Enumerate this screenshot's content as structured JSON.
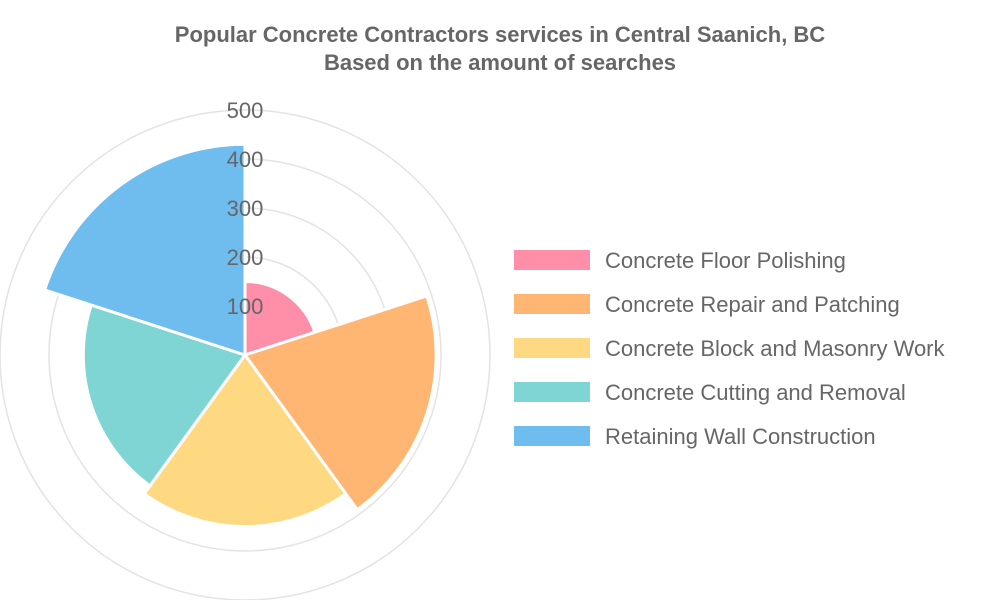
{
  "chart_data": {
    "type": "polarArea",
    "title": [
      "Popular Concrete Contractors services in Central Saanich, BC",
      "Based on the amount of searches"
    ],
    "categories": [
      "Concrete Floor Polishing",
      "Concrete Repair and Patching",
      "Concrete Block and Masonry Work",
      "Concrete Cutting and Removal",
      "Retaining Wall Construction"
    ],
    "values": [
      150,
      390,
      350,
      330,
      430
    ],
    "colors": [
      "#ff8fa8",
      "#ffb672",
      "#ffd982",
      "#7fd5d4",
      "#6fbcef"
    ],
    "r_axis": {
      "min": 0,
      "max": 500,
      "ticks": [
        "100",
        "200",
        "300",
        "400",
        "500"
      ]
    },
    "grid": true,
    "legend_position": "right"
  }
}
